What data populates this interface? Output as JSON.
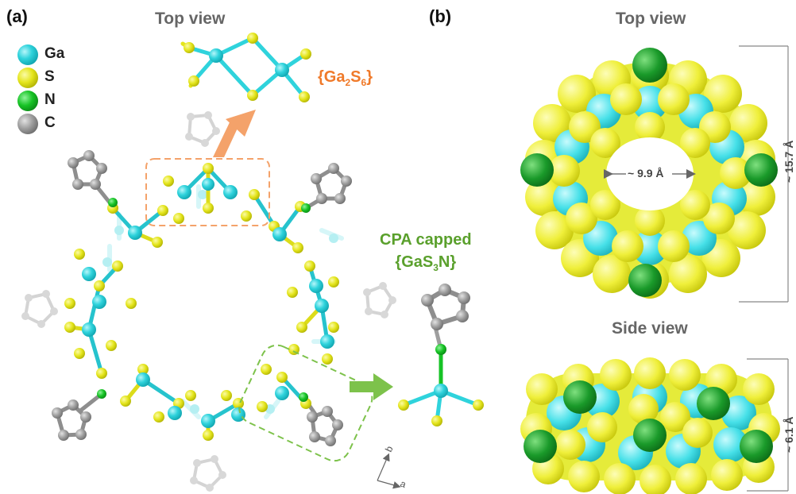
{
  "panel_a": {
    "letter": "(a)",
    "title": "Top view",
    "legend": [
      {
        "label": "Ga",
        "color": "#2fd3dc",
        "icon": "ga-atom-icon"
      },
      {
        "label": "S",
        "color": "#e4e51c",
        "icon": "s-atom-icon"
      },
      {
        "label": "N",
        "color": "#17c325",
        "icon": "n-atom-icon"
      },
      {
        "label": "C",
        "color": "#9e9e9e",
        "icon": "c-atom-icon"
      }
    ],
    "cluster_label": {
      "prefix": "{Ga",
      "sub1": "2",
      "mid": "S",
      "sub2": "6",
      "suffix": "}",
      "color": "#f07a2a"
    },
    "cpa_label": {
      "line1": "CPA capped",
      "prefix": "{GaS",
      "sub": "3",
      "suffix": "N}",
      "color": "#5aa02c"
    },
    "axes": {
      "b": "b",
      "a": "a"
    }
  },
  "panel_b": {
    "letter": "(b)",
    "top_title": "Top view",
    "side_title": "Side view",
    "inner_diameter": "~ 9.9 Å",
    "outer_diameter": "~ 15.7 Å",
    "height": "~ 6.1 Å"
  },
  "colors": {
    "ga": "#2fd3dc",
    "s": "#e4e51c",
    "n": "#17c325",
    "c": "#9e9e9e",
    "orange": "#f4a26a",
    "green": "#7dc24b"
  }
}
